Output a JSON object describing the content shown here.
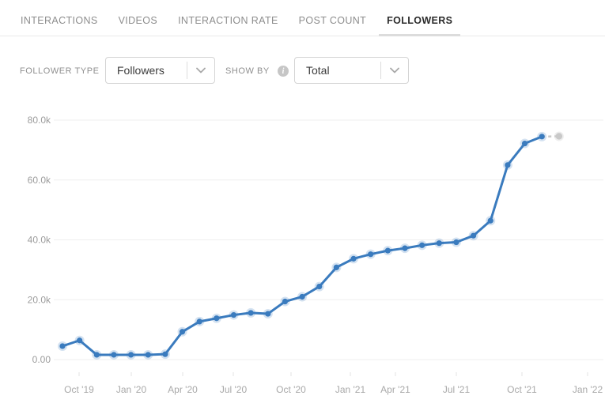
{
  "tabs": {
    "items": [
      {
        "label": "INTERACTIONS",
        "active": false
      },
      {
        "label": "VIDEOS",
        "active": false
      },
      {
        "label": "INTERACTION RATE",
        "active": false
      },
      {
        "label": "POST COUNT",
        "active": false
      },
      {
        "label": "FOLLOWERS",
        "active": true
      }
    ]
  },
  "controls": {
    "follower_type": {
      "label": "FOLLOWER TYPE",
      "value": "Followers"
    },
    "show_by": {
      "label": "SHOW BY",
      "value": "Total",
      "info_icon": "info-circle-icon"
    }
  },
  "chart_data": {
    "type": "line",
    "x_tick_labels": [
      "Oct '19",
      "Jan '20",
      "Apr '20",
      "Jul '20",
      "Oct '20",
      "Jan '21",
      "Apr '21",
      "Jul '21",
      "Oct '21",
      "Jan '22"
    ],
    "y_tick_labels": [
      "80.0k",
      "60.0k",
      "40.0k",
      "20.0k",
      "0.00"
    ],
    "y_tick_values_k": [
      80,
      60,
      40,
      20,
      0
    ],
    "ylim_k": [
      0,
      80
    ],
    "grid": true,
    "legend_position": "none",
    "line_color": "#3a7bbe",
    "projected_color": "#c9c9c9",
    "series": [
      {
        "name": "Followers (Total)",
        "values_k": [
          4.5,
          6.4,
          1.6,
          1.6,
          1.6,
          1.6,
          1.8,
          9.3,
          12.7,
          13.8,
          14.9,
          15.6,
          15.3,
          19.4,
          21.0,
          24.4,
          30.8,
          33.7,
          35.2,
          36.4,
          37.2,
          38.2,
          38.9,
          39.2,
          41.4,
          46.4,
          65.0,
          72.2,
          74.5
        ]
      }
    ],
    "projected_point_k": 74.6
  }
}
